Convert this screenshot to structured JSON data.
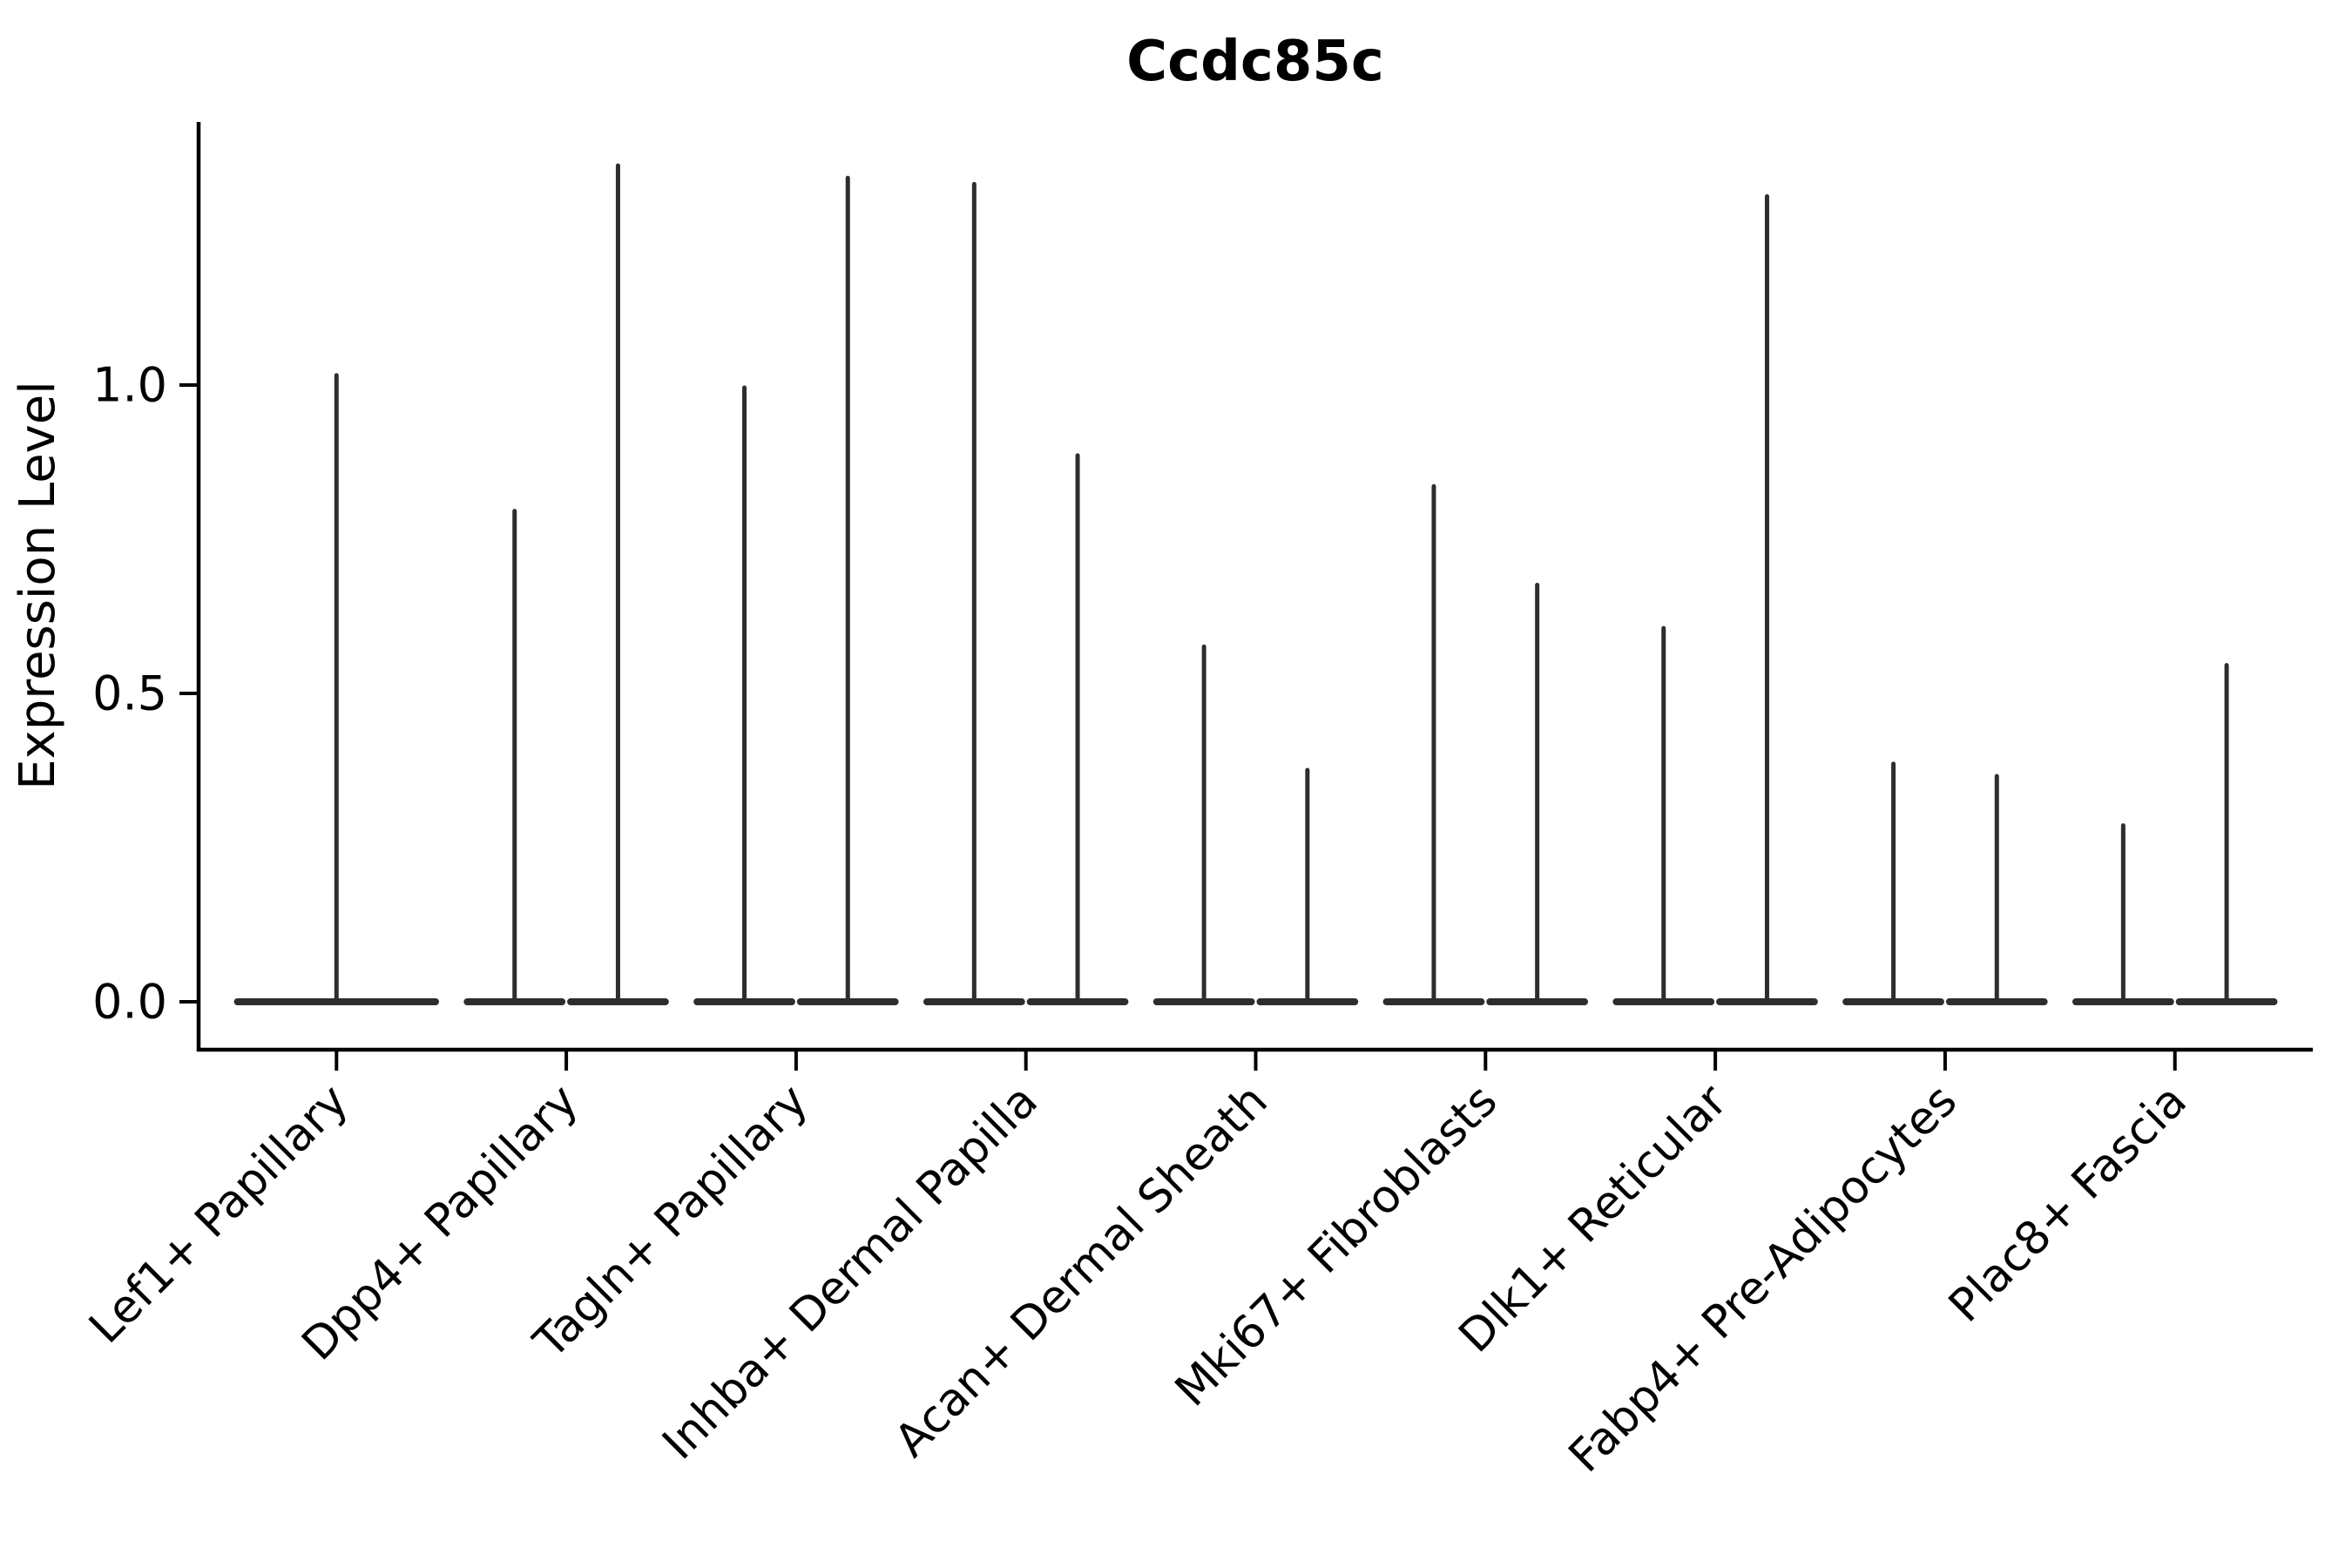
{
  "chart_data": {
    "type": "violin",
    "title": "Ccdc85c",
    "xlabel": "",
    "ylabel": "Expression Level",
    "ytick_labels": [
      "0.0",
      "0.5",
      "1.0"
    ],
    "ytick_values": [
      0.0,
      0.5,
      1.0
    ],
    "ylim": [
      -0.08,
      1.43
    ],
    "grid": false,
    "legend": "none",
    "spines": [
      "left",
      "bottom"
    ],
    "categories": [
      "Lef1+ Papillary",
      "Dpp4+ Papillary",
      "Tagln+ Papillary",
      "Inhba+ Dermal Papilla",
      "Acan+ Dermal Sheath",
      "Mki67+ Fibroblasts",
      "Dlk1+ Reticular",
      "Fabp4+ Pre-Adipocytes",
      "Plac8+ Fascia"
    ],
    "violins": [
      {
        "category": "Lef1+ Papillary",
        "groups": [
          {
            "side": "center",
            "min_expression": 0,
            "max_expression": 1.02
          }
        ]
      },
      {
        "category": "Dpp4+ Papillary",
        "groups": [
          {
            "side": "left",
            "min_expression": 0,
            "max_expression": 0.8
          },
          {
            "side": "right",
            "min_expression": 0,
            "max_expression": 1.36
          }
        ]
      },
      {
        "category": "Tagln+ Papillary",
        "groups": [
          {
            "side": "left",
            "min_expression": 0,
            "max_expression": 1.0
          },
          {
            "side": "right",
            "min_expression": 0,
            "max_expression": 1.34
          }
        ]
      },
      {
        "category": "Inhba+ Dermal Papilla",
        "groups": [
          {
            "side": "left",
            "min_expression": 0,
            "max_expression": 1.33
          },
          {
            "side": "right",
            "min_expression": 0,
            "max_expression": 0.89
          }
        ]
      },
      {
        "category": "Acan+ Dermal Sheath",
        "groups": [
          {
            "side": "left",
            "min_expression": 0,
            "max_expression": 0.58
          },
          {
            "side": "right",
            "min_expression": 0,
            "max_expression": 0.38
          }
        ]
      },
      {
        "category": "Mki67+ Fibroblasts",
        "groups": [
          {
            "side": "left",
            "min_expression": 0,
            "max_expression": 0.84
          },
          {
            "side": "right",
            "min_expression": 0,
            "max_expression": 0.68
          }
        ]
      },
      {
        "category": "Dlk1+ Reticular",
        "groups": [
          {
            "side": "left",
            "min_expression": 0,
            "max_expression": 0.61
          },
          {
            "side": "right",
            "min_expression": 0,
            "max_expression": 1.31
          }
        ]
      },
      {
        "category": "Fabp4+ Pre-Adipocytes",
        "groups": [
          {
            "side": "left",
            "min_expression": 0,
            "max_expression": 0.39
          },
          {
            "side": "right",
            "min_expression": 0,
            "max_expression": 0.37
          }
        ]
      },
      {
        "category": "Plac8+ Fascia",
        "groups": [
          {
            "side": "left",
            "min_expression": 0,
            "max_expression": 0.29
          },
          {
            "side": "right",
            "min_expression": 0,
            "max_expression": 0.55
          }
        ]
      }
    ],
    "layout_hints": {
      "violin_total_width": 0.9,
      "split_offset": 0.225,
      "baseline_body": "wide flat violin body at expression 0 with thin spike rising to max",
      "x_label_rotation_deg": 45
    },
    "style": {
      "violin_color": "#2d2d2d",
      "axis_color": "#000000",
      "text_color": "#000000",
      "background": "#ffffff"
    }
  }
}
